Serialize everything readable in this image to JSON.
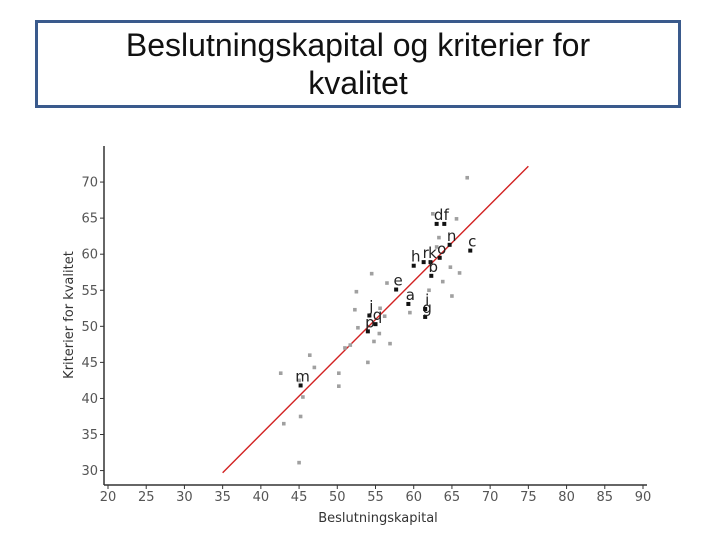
{
  "slide": {
    "title": "Beslutningskapital og kriterier for kvalitet"
  },
  "chart_data": {
    "type": "scatter",
    "xlabel": "Beslutningskapital",
    "ylabel": "Kriterier for kvalitet",
    "xlim": [
      20,
      90
    ],
    "ylim": [
      28,
      75
    ],
    "xticks": [
      20,
      25,
      30,
      35,
      40,
      45,
      50,
      55,
      60,
      65,
      70,
      75,
      80,
      85,
      90
    ],
    "yticks": [
      30,
      35,
      40,
      45,
      50,
      55,
      60,
      65,
      70
    ],
    "grid": false,
    "colors": {
      "point": "#a0a0a0",
      "labeled_point": "#111111",
      "trend": "#d22222",
      "axis": "#333333"
    },
    "trend_line": {
      "x": [
        35,
        75
      ],
      "y": [
        29.7,
        72.2
      ]
    },
    "labeled_points": [
      {
        "label": "m",
        "x": 45.2,
        "y": 41.8
      },
      {
        "label": "p",
        "x": 54.0,
        "y": 49.3
      },
      {
        "label": "q",
        "x": 55.0,
        "y": 50.3
      },
      {
        "label": "j",
        "x": 54.2,
        "y": 51.5
      },
      {
        "label": "e",
        "x": 57.7,
        "y": 55.1
      },
      {
        "label": "a",
        "x": 59.3,
        "y": 53.1
      },
      {
        "label": "g",
        "x": 61.5,
        "y": 51.3
      },
      {
        "label": "i",
        "x": 61.5,
        "y": 52.4
      },
      {
        "label": "h",
        "x": 60.0,
        "y": 58.4
      },
      {
        "label": "r",
        "x": 61.3,
        "y": 58.9
      },
      {
        "label": "k",
        "x": 62.2,
        "y": 58.9
      },
      {
        "label": "b",
        "x": 62.3,
        "y": 57.0
      },
      {
        "label": "o",
        "x": 63.4,
        "y": 59.5
      },
      {
        "label": "d",
        "x": 63.0,
        "y": 64.2
      },
      {
        "label": "f",
        "x": 64.0,
        "y": 64.2
      },
      {
        "label": "n",
        "x": 64.7,
        "y": 61.3
      },
      {
        "label": "c",
        "x": 67.4,
        "y": 60.5
      }
    ],
    "points": [
      {
        "x": 67.0,
        "y": 70.6
      },
      {
        "x": 62.5,
        "y": 65.6
      },
      {
        "x": 65.6,
        "y": 64.9
      },
      {
        "x": 63.3,
        "y": 62.3
      },
      {
        "x": 63.0,
        "y": 61.0
      },
      {
        "x": 64.8,
        "y": 58.2
      },
      {
        "x": 66.0,
        "y": 57.4
      },
      {
        "x": 63.8,
        "y": 56.2
      },
      {
        "x": 54.5,
        "y": 57.3
      },
      {
        "x": 56.5,
        "y": 56.0
      },
      {
        "x": 52.5,
        "y": 54.8
      },
      {
        "x": 62.0,
        "y": 55.0
      },
      {
        "x": 65.0,
        "y": 54.2
      },
      {
        "x": 52.3,
        "y": 52.3
      },
      {
        "x": 55.6,
        "y": 52.5
      },
      {
        "x": 59.5,
        "y": 51.9
      },
      {
        "x": 56.2,
        "y": 51.4
      },
      {
        "x": 52.7,
        "y": 49.8
      },
      {
        "x": 55.5,
        "y": 49.0
      },
      {
        "x": 54.8,
        "y": 47.9
      },
      {
        "x": 56.9,
        "y": 47.6
      },
      {
        "x": 51.7,
        "y": 47.4
      },
      {
        "x": 51.0,
        "y": 47.0
      },
      {
        "x": 54.0,
        "y": 45.0
      },
      {
        "x": 46.4,
        "y": 46.0
      },
      {
        "x": 47.0,
        "y": 44.3
      },
      {
        "x": 42.6,
        "y": 43.5
      },
      {
        "x": 50.2,
        "y": 43.5
      },
      {
        "x": 45.0,
        "y": 42.5
      },
      {
        "x": 50.2,
        "y": 41.7
      },
      {
        "x": 45.5,
        "y": 40.2
      },
      {
        "x": 45.2,
        "y": 37.5
      },
      {
        "x": 43.0,
        "y": 36.5
      },
      {
        "x": 45.0,
        "y": 31.1
      }
    ]
  }
}
